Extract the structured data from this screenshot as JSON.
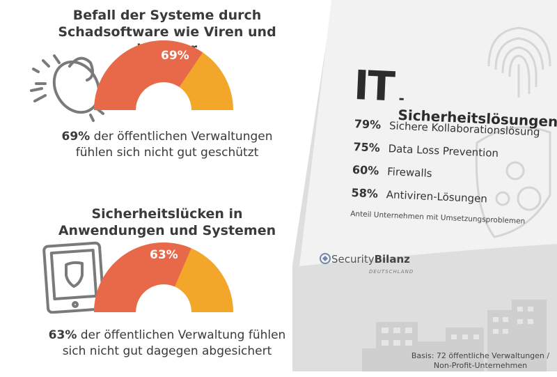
{
  "section1": {
    "title_line1": "Befall der Systeme durch",
    "title_line2": "Schadsoftware wie Viren und Würmer",
    "percent_value": 69,
    "percent_label": "69%",
    "caption_bold": "69%",
    "caption_line1_rest": " der öffentlichen Verwaltungen",
    "caption_line2": "fühlen sich nicht gut geschützt",
    "icon": "bug-icon"
  },
  "section2": {
    "title_line1": "Sicherheitslücken in",
    "title_line2": "Anwendungen und Systemen",
    "percent_value": 63,
    "percent_label": "63%",
    "caption_bold": "63%",
    "caption_line1_rest": " der öffentlichen Verwaltung fühlen",
    "caption_line2": "sich nicht gut dagegen abgesichert",
    "icon": "tablet-shield-icon"
  },
  "panel": {
    "title_big": "IT",
    "title_rest": "-Sicherheitslösungen",
    "items": [
      {
        "pct": "79%",
        "label": "Sichere Kollaborationslösung"
      },
      {
        "pct": "75%",
        "label": "Data Loss Prevention"
      },
      {
        "pct": "60%",
        "label": "Firewalls"
      },
      {
        "pct": "58%",
        "label": "Antiviren-Lösungen"
      }
    ],
    "note": "Anteil Unternehmen mit Umsetzungsproblemen",
    "brand_part1": "Security",
    "brand_part2": "Bilanz",
    "brand_sub": "DEUTSCHLAND"
  },
  "footer": {
    "basis_line1": "Basis: 72 öffentliche Verwaltungen /",
    "basis_line2": "Non-Profit-Unternehmen"
  },
  "colors": {
    "gauge_fill": "#e8694a",
    "gauge_rest": "#f2a62a",
    "panel_bg": "#dcdcdc",
    "panel_card": "#f0f0f0",
    "icon_grey": "#7a7a7a"
  }
}
